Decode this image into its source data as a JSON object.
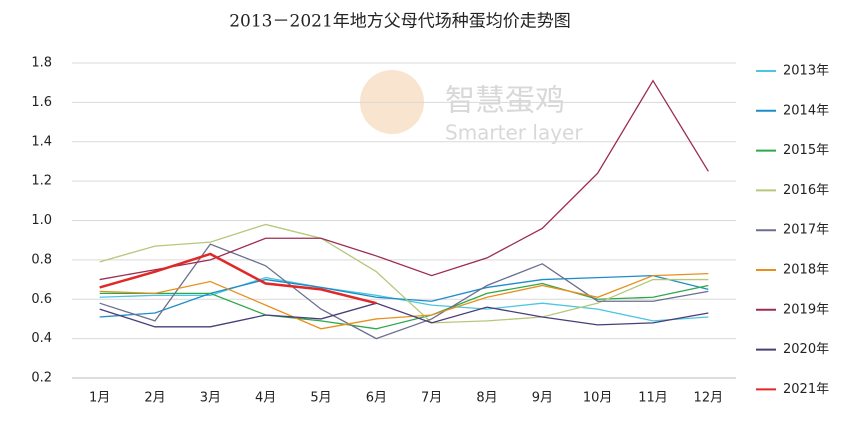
{
  "chart_data": {
    "type": "line",
    "title": "2013－2021年地方父母代场种蛋均价走势图",
    "watermark": [
      "智慧蛋鸡",
      "Smarter layer"
    ],
    "categories": [
      "1月",
      "2月",
      "3月",
      "4月",
      "5月",
      "6月",
      "7月",
      "8月",
      "9月",
      "10月",
      "11月",
      "12月"
    ],
    "ylim": [
      0.2,
      1.8
    ],
    "yticks": [
      0.2,
      0.4,
      0.6,
      0.8,
      {
        "value": 1,
        "label": "1.0"
      },
      1.2,
      1.4,
      1.6,
      1.8
    ],
    "grid": true,
    "legend": "right",
    "series": [
      {
        "name": "2013年",
        "color": "#4cc6e0",
        "values": [
          0.61,
          0.62,
          0.62,
          0.71,
          0.66,
          0.62,
          0.57,
          0.55,
          0.58,
          0.55,
          0.49,
          0.51
        ]
      },
      {
        "name": "2014年",
        "color": "#1e8cc8",
        "values": [
          0.51,
          0.53,
          0.63,
          0.7,
          0.66,
          0.61,
          0.59,
          0.66,
          0.7,
          0.71,
          0.72,
          0.65
        ]
      },
      {
        "name": "2015年",
        "color": "#2ea84a",
        "values": [
          0.63,
          0.63,
          0.63,
          0.52,
          0.49,
          0.45,
          0.52,
          0.63,
          0.68,
          0.6,
          0.61,
          0.67
        ]
      },
      {
        "name": "2016年",
        "color": "#b5c87a",
        "values": [
          0.79,
          0.87,
          0.89,
          0.98,
          0.91,
          0.74,
          0.48,
          0.49,
          0.51,
          0.58,
          0.7,
          0.7
        ]
      },
      {
        "name": "2017年",
        "color": "#6a6f8f",
        "values": [
          0.58,
          0.49,
          0.88,
          0.77,
          0.55,
          0.4,
          0.5,
          0.67,
          0.78,
          0.59,
          0.59,
          0.64
        ]
      },
      {
        "name": "2018年",
        "color": "#e8901e",
        "values": [
          0.64,
          0.63,
          0.69,
          0.57,
          0.45,
          0.5,
          0.52,
          0.61,
          0.67,
          0.61,
          0.72,
          0.73
        ]
      },
      {
        "name": "2019年",
        "color": "#9c2c50",
        "values": [
          0.7,
          0.75,
          0.8,
          0.91,
          0.91,
          0.82,
          0.72,
          0.81,
          0.96,
          1.24,
          1.71,
          1.25
        ]
      },
      {
        "name": "2020年",
        "color": "#4a3c78",
        "values": [
          0.55,
          0.46,
          0.46,
          0.52,
          0.5,
          0.58,
          0.48,
          0.56,
          0.51,
          0.47,
          0.48,
          0.53
        ]
      },
      {
        "name": "2021年",
        "color": "#e02828",
        "values": [
          0.66,
          0.74,
          0.83,
          0.68,
          0.65,
          0.58,
          null,
          null,
          null,
          null,
          null,
          null
        ]
      }
    ]
  }
}
